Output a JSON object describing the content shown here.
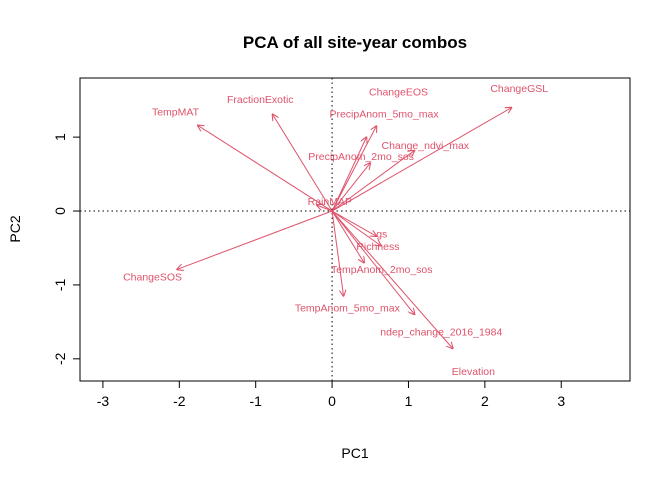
{
  "chart_data": {
    "type": "scatter",
    "subtype": "biplot-loadings",
    "title": "PCA of all site-year combos",
    "xlabel": "PC1",
    "ylabel": "PC2",
    "xlim": [
      -3.3,
      3.9
    ],
    "ylim": [
      -2.3,
      1.8
    ],
    "xticks": [
      -3,
      -2,
      -1,
      0,
      1,
      2,
      3
    ],
    "yticks": [
      -2,
      -1,
      0,
      1
    ],
    "reference_lines": {
      "x": 0,
      "y": 0,
      "style": "dotted"
    },
    "arrow_color": "#DF536B",
    "axis_color": "#000000",
    "vectors": [
      {
        "name": "ChangeGSL",
        "x": 2.35,
        "y": 1.4,
        "lx": 2.45,
        "ly": 1.65
      },
      {
        "name": "ChangeEOS",
        "x": 0.58,
        "y": 1.15,
        "lx": 0.87,
        "ly": 1.6
      },
      {
        "name": "PrecipAnom_5mo_max",
        "x": 0.45,
        "y": 1.0,
        "lx": 0.68,
        "ly": 1.3
      },
      {
        "name": "Change_ndvi_max",
        "x": 1.08,
        "y": 0.82,
        "lx": 1.22,
        "ly": 0.88
      },
      {
        "name": "PrecipAnom_2mo_sos",
        "x": 0.5,
        "y": 0.65,
        "lx": 0.38,
        "ly": 0.73
      },
      {
        "name": "FractionExotic",
        "x": -0.78,
        "y": 1.31,
        "lx": -0.94,
        "ly": 1.5
      },
      {
        "name": "TempMAT",
        "x": -1.76,
        "y": 1.16,
        "lx": -2.05,
        "ly": 1.33
      },
      {
        "name": "RainMAP",
        "x": -0.2,
        "y": 0.08,
        "lx": -0.03,
        "ly": 0.12
      },
      {
        "name": "ChangeSOS",
        "x": -2.03,
        "y": -0.79,
        "lx": -2.35,
        "ly": -0.9
      },
      {
        "name": "gs",
        "x": 0.58,
        "y": -0.34,
        "lx": 0.65,
        "ly": -0.32
      },
      {
        "name": "Richness",
        "x": 0.64,
        "y": -0.47,
        "lx": 0.6,
        "ly": -0.49
      },
      {
        "name": "TempAnom_2mo_sos",
        "x": 0.42,
        "y": -0.7,
        "lx": 0.65,
        "ly": -0.8
      },
      {
        "name": "TempAnom_5mo_max",
        "x": 0.15,
        "y": -1.15,
        "lx": 0.2,
        "ly": -1.32
      },
      {
        "name": "ndep_change_2016_1984",
        "x": 1.08,
        "y": -1.4,
        "lx": 1.43,
        "ly": -1.65
      },
      {
        "name": "Elevation",
        "x": 1.58,
        "y": -1.86,
        "lx": 1.85,
        "ly": -2.18
      }
    ]
  }
}
